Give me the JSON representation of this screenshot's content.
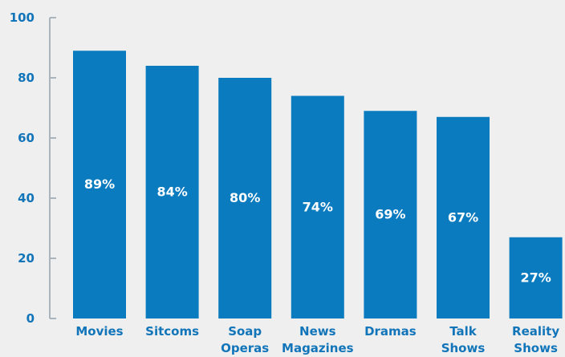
{
  "chart_data": {
    "type": "bar",
    "categories": [
      [
        "Movies"
      ],
      [
        "Sitcoms"
      ],
      [
        "Soap",
        "Operas"
      ],
      [
        "News",
        "Magazines"
      ],
      [
        "Dramas"
      ],
      [
        "Talk",
        "Shows"
      ],
      [
        "Reality",
        "Shows"
      ]
    ],
    "values": [
      89,
      84,
      80,
      74,
      69,
      67,
      27
    ],
    "value_labels": [
      "89%",
      "84%",
      "80%",
      "74%",
      "69%",
      "67%",
      "27%"
    ],
    "title": "",
    "xlabel": "",
    "ylabel": "",
    "ylim": [
      0,
      100
    ],
    "yticks": [
      0,
      20,
      40,
      60,
      80,
      100
    ],
    "grid": false,
    "legend": "none",
    "colors": {
      "bar": "#0a7bbf",
      "axis": "#aab4bd",
      "text": "#1275b9",
      "value_text": "#ffffff",
      "background": "#efefef"
    }
  }
}
